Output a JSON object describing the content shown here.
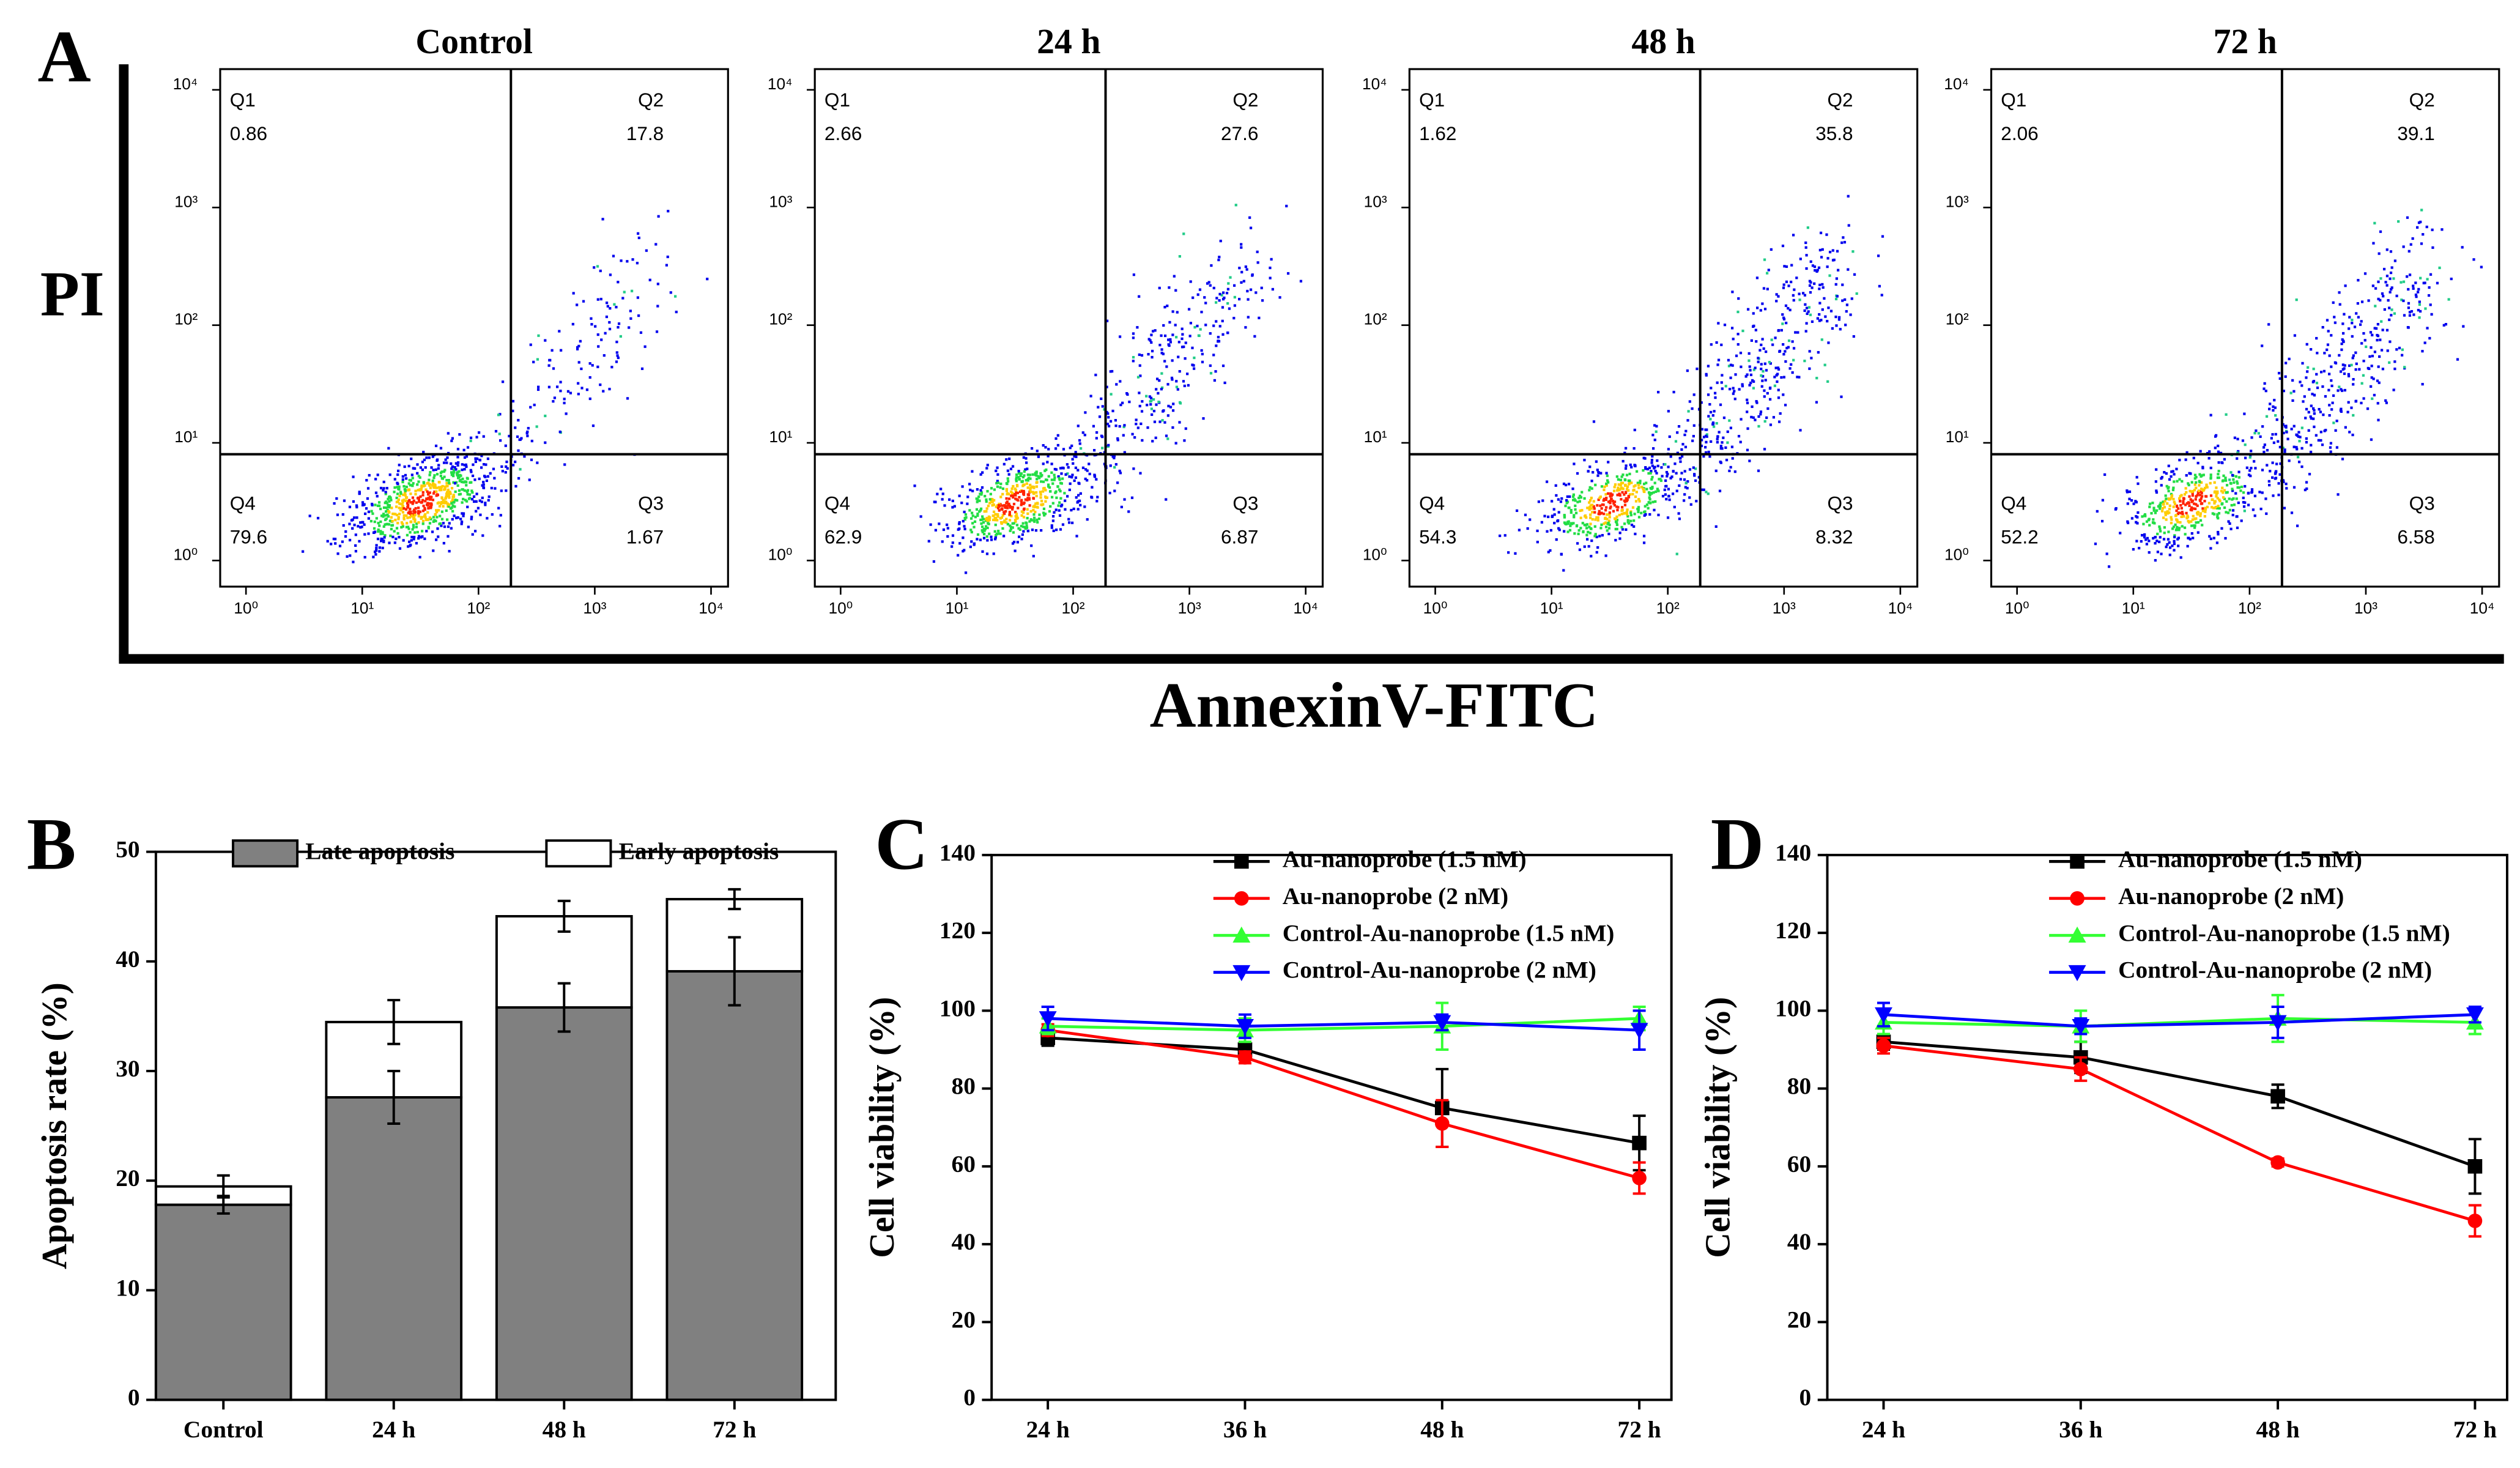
{
  "chart_data": [
    {
      "type": "flow",
      "panel_label": "A",
      "y_label": "PI",
      "x_label": "AnnexinV-FITC",
      "xscale": "log",
      "yscale": "log",
      "xlim": [
        0.6,
        14000
      ],
      "ylim": [
        0.6,
        15000
      ],
      "xticks": [
        {
          "value": 1,
          "label": "10⁰"
        },
        {
          "value": 10,
          "label": "10¹"
        },
        {
          "value": 100,
          "label": "10²"
        },
        {
          "value": 1000,
          "label": "10³"
        },
        {
          "value": 10000,
          "label": "10⁴"
        }
      ],
      "yticks": [
        {
          "value": 1,
          "label": "10⁰"
        },
        {
          "value": 10,
          "label": "10¹"
        },
        {
          "value": 100,
          "label": "10²"
        },
        {
          "value": 1000,
          "label": "10³"
        },
        {
          "value": 10000,
          "label": "10⁴"
        }
      ],
      "gate": {
        "x": 190,
        "y": 8
      },
      "plots": [
        {
          "title": "Control",
          "quadrants": [
            {
              "name": "Q1",
              "value": 0.86
            },
            {
              "name": "Q2",
              "value": 17.8
            },
            {
              "name": "Q3",
              "value": 1.67
            },
            {
              "name": "Q4",
              "value": 79.6
            }
          ]
        },
        {
          "title": "24 h",
          "quadrants": [
            {
              "name": "Q1",
              "value": 2.66
            },
            {
              "name": "Q2",
              "value": 27.6
            },
            {
              "name": "Q3",
              "value": 6.87
            },
            {
              "name": "Q4",
              "value": 62.9
            }
          ]
        },
        {
          "title": "48 h",
          "quadrants": [
            {
              "name": "Q1",
              "value": 1.62
            },
            {
              "name": "Q2",
              "value": 35.8
            },
            {
              "name": "Q3",
              "value": 8.32
            },
            {
              "name": "Q4",
              "value": 54.3
            }
          ]
        },
        {
          "title": "72 h",
          "quadrants": [
            {
              "name": "Q1",
              "value": 2.06
            },
            {
              "name": "Q2",
              "value": 39.1
            },
            {
              "name": "Q3",
              "value": 6.58
            },
            {
              "name": "Q4",
              "value": 52.2
            }
          ]
        }
      ]
    },
    {
      "type": "bar",
      "stacked": true,
      "panel_label": "B",
      "y_label": "Apoptosis rate (%)",
      "categories": [
        "Control",
        "24 h",
        "48 h",
        "72 h"
      ],
      "ylim": [
        0,
        50
      ],
      "yticks": [
        0,
        10,
        20,
        30,
        40,
        50
      ],
      "series": [
        {
          "name": "Late apoptosis",
          "color": "#808080",
          "values": [
            17.8,
            27.6,
            35.8,
            39.1
          ],
          "errors": [
            0.8,
            2.4,
            2.2,
            3.1
          ]
        },
        {
          "name": "Early apoptosis",
          "color": "#ffffff",
          "values": [
            1.67,
            6.87,
            8.32,
            6.58
          ],
          "errors": [
            1.0,
            2.0,
            1.4,
            0.9
          ]
        }
      ]
    },
    {
      "type": "line",
      "panel_label": "C",
      "y_label": "Cell viability (%)",
      "categories": [
        "24 h",
        "36 h",
        "48 h",
        "72 h"
      ],
      "ylim": [
        0,
        140
      ],
      "yticks": [
        0,
        20,
        40,
        60,
        80,
        100,
        120,
        140
      ],
      "series": [
        {
          "name": "Au-nanoprobe (1.5 nM)",
          "color": "#000000",
          "marker": "square",
          "values": [
            93,
            90,
            75,
            66
          ],
          "errors": [
            2,
            1.5,
            10,
            7
          ]
        },
        {
          "name": "Au-nanoprobe (2 nM)",
          "color": "#ff0000",
          "marker": "circle",
          "values": [
            95,
            88,
            71,
            57
          ],
          "errors": [
            1.5,
            1.5,
            6,
            4
          ]
        },
        {
          "name": "Control-Au-nanoprobe (1.5 nM)",
          "color": "#33ff33",
          "marker": "triangle-up",
          "values": [
            96,
            95,
            96,
            98
          ],
          "errors": [
            2,
            3,
            6,
            3
          ]
        },
        {
          "name": "Control-Au-nanoprobe (2 nM)",
          "color": "#0000ff",
          "marker": "triangle-down",
          "values": [
            98,
            96,
            97,
            95
          ],
          "errors": [
            3,
            3,
            2,
            5
          ]
        }
      ]
    },
    {
      "type": "line",
      "panel_label": "D",
      "y_label": "Cell viability (%)",
      "categories": [
        "24 h",
        "36 h",
        "48 h",
        "72 h"
      ],
      "ylim": [
        0,
        140
      ],
      "yticks": [
        0,
        20,
        40,
        60,
        80,
        100,
        120,
        140
      ],
      "series": [
        {
          "name": "Au-nanoprobe (1.5 nM)",
          "color": "#000000",
          "marker": "square",
          "values": [
            92,
            88,
            78,
            60
          ],
          "errors": [
            2,
            4,
            3,
            7
          ]
        },
        {
          "name": "Au-nanoprobe (2 nM)",
          "color": "#ff0000",
          "marker": "circle",
          "values": [
            91,
            85,
            61,
            46
          ],
          "errors": [
            2,
            3,
            1,
            4
          ]
        },
        {
          "name": "Control-Au-nanoprobe (1.5 nM)",
          "color": "#33ff33",
          "marker": "triangle-up",
          "values": [
            97,
            96,
            98,
            97
          ],
          "errors": [
            3,
            4,
            6,
            3
          ]
        },
        {
          "name": "Control-Au-nanoprobe (2 nM)",
          "color": "#0000ff",
          "marker": "triangle-down",
          "values": [
            99,
            96,
            97,
            99
          ],
          "errors": [
            3,
            2,
            4,
            2
          ]
        }
      ]
    }
  ]
}
